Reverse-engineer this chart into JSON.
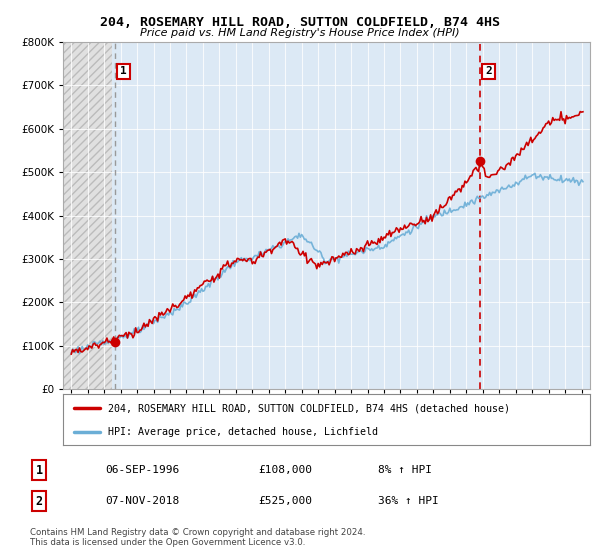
{
  "title": "204, ROSEMARY HILL ROAD, SUTTON COLDFIELD, B74 4HS",
  "subtitle": "Price paid vs. HM Land Registry's House Price Index (HPI)",
  "legend_line1": "204, ROSEMARY HILL ROAD, SUTTON COLDFIELD, B74 4HS (detached house)",
  "legend_line2": "HPI: Average price, detached house, Lichfield",
  "footnote": "Contains HM Land Registry data © Crown copyright and database right 2024.\nThis data is licensed under the Open Government Licence v3.0.",
  "sale1_label": "1",
  "sale1_date": "06-SEP-1996",
  "sale1_price": "£108,000",
  "sale1_hpi": "8% ↑ HPI",
  "sale2_label": "2",
  "sale2_date": "07-NOV-2018",
  "sale2_price": "£525,000",
  "sale2_hpi": "36% ↑ HPI",
  "sale1_year": 1996.67,
  "sale1_value": 108000,
  "sale2_year": 2018.84,
  "sale2_value": 525000,
  "hpi_color": "#6baed6",
  "price_color": "#cc0000",
  "dashed_color": "#cc0000",
  "bg_blue": "#dce9f5",
  "bg_hatch_face": "#e8e8e8",
  "ylim_max": 800000,
  "ylim_min": 0,
  "xlim_min": 1993.5,
  "xlim_max": 2025.5
}
